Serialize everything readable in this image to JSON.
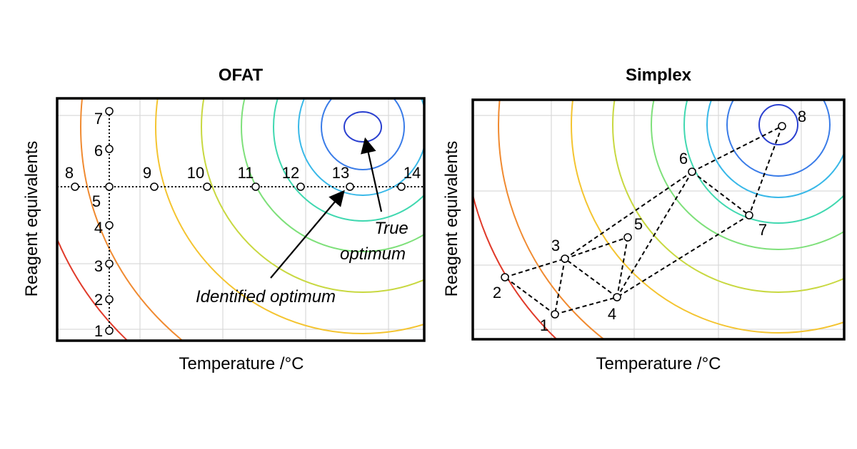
{
  "panels": {
    "ofat": {
      "title": "OFAT",
      "xlabel": "Temperature /°C",
      "ylabel": "Reagent equivalents",
      "points": [
        "1",
        "2",
        "3",
        "4",
        "5",
        "6",
        "7",
        "8",
        "9",
        "10",
        "11",
        "12",
        "13",
        "14"
      ],
      "annotations": {
        "true_optimum_line1": "True",
        "true_optimum_line2": "optimum",
        "identified_optimum": "Identified optimum"
      }
    },
    "simplex": {
      "title": "Simplex",
      "xlabel": "Temperature /°C",
      "ylabel": "Reagent equivalents",
      "points": [
        "1",
        "2",
        "3",
        "4",
        "5",
        "6",
        "7",
        "8"
      ]
    }
  },
  "contour_colors": [
    "#e03a2a",
    "#f08a30",
    "#f4c430",
    "#c8d840",
    "#7ee07a",
    "#40d8b0",
    "#38b8e8",
    "#3a7ce8",
    "#2a40d0"
  ]
}
